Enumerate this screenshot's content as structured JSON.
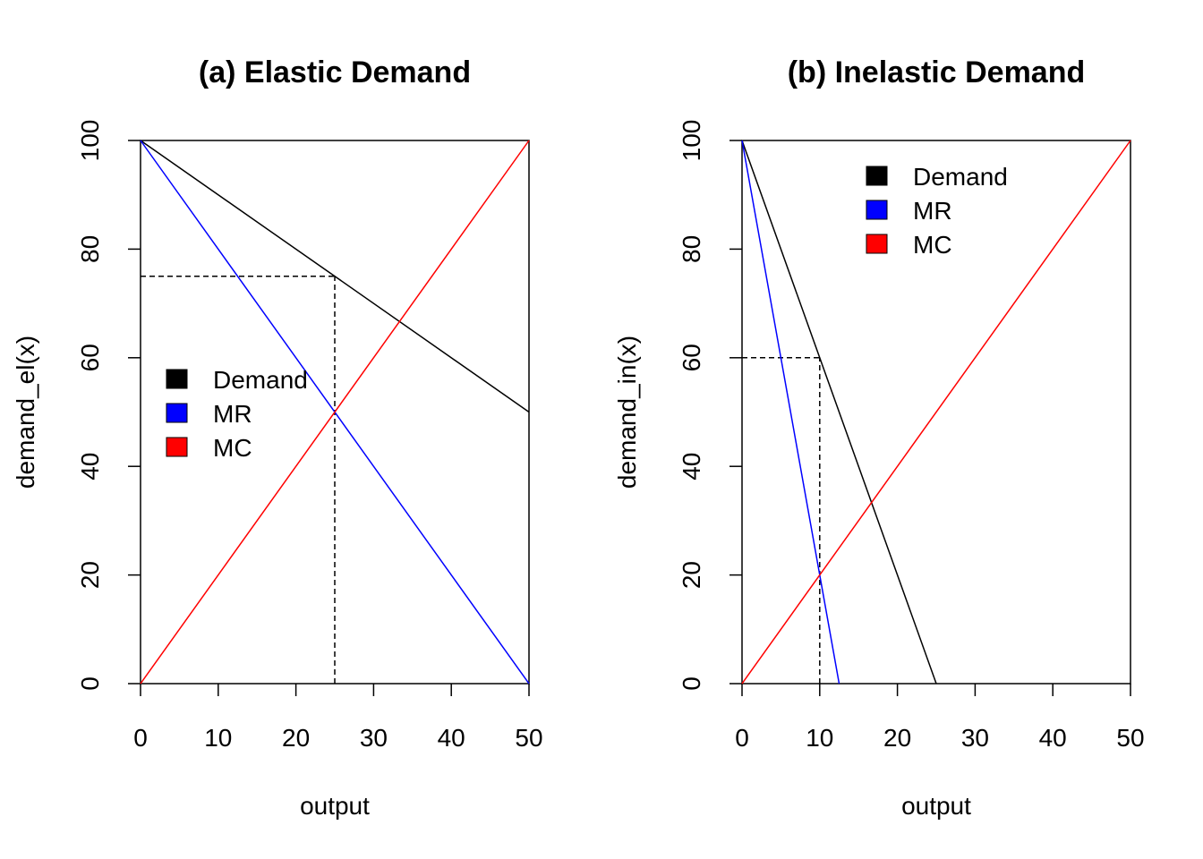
{
  "chart_data": [
    {
      "type": "line",
      "title": "(a) Elastic Demand",
      "xlabel": "output",
      "ylabel": "demand_el(x)",
      "xlim": [
        0,
        50
      ],
      "ylim": [
        0,
        100
      ],
      "xticks": [
        0,
        10,
        20,
        30,
        40,
        50
      ],
      "yticks": [
        0,
        20,
        40,
        60,
        80,
        100
      ],
      "grid": false,
      "legend_position": "left-middle",
      "legend": [
        {
          "label": "Demand",
          "color": "#000000"
        },
        {
          "label": "MR",
          "color": "#0000ff"
        },
        {
          "label": "MC",
          "color": "#ff0000"
        }
      ],
      "series": [
        {
          "name": "Demand",
          "color": "#000000",
          "x": [
            0,
            50
          ],
          "y": [
            100,
            50
          ]
        },
        {
          "name": "MR",
          "color": "#0000ff",
          "x": [
            0,
            50
          ],
          "y": [
            100,
            0
          ]
        },
        {
          "name": "MC",
          "color": "#ff0000",
          "x": [
            0,
            50
          ],
          "y": [
            0,
            100
          ]
        }
      ],
      "reference_lines": [
        {
          "x": [
            0,
            25
          ],
          "y": [
            75,
            75
          ]
        },
        {
          "x": [
            25,
            25
          ],
          "y": [
            0,
            75
          ]
        }
      ]
    },
    {
      "type": "line",
      "title": "(b) Inelastic Demand",
      "xlabel": "output",
      "ylabel": "demand_in(x)",
      "xlim": [
        0,
        50
      ],
      "ylim": [
        0,
        100
      ],
      "xticks": [
        0,
        10,
        20,
        30,
        40,
        50
      ],
      "yticks": [
        0,
        20,
        40,
        60,
        80,
        100
      ],
      "grid": false,
      "legend_position": "top-center",
      "legend": [
        {
          "label": "Demand",
          "color": "#000000"
        },
        {
          "label": "MR",
          "color": "#0000ff"
        },
        {
          "label": "MC",
          "color": "#ff0000"
        }
      ],
      "series": [
        {
          "name": "Demand",
          "color": "#000000",
          "x": [
            0,
            25
          ],
          "y": [
            100,
            0
          ]
        },
        {
          "name": "MR",
          "color": "#0000ff",
          "x": [
            0,
            12.5
          ],
          "y": [
            100,
            0
          ]
        },
        {
          "name": "MC",
          "color": "#ff0000",
          "x": [
            0,
            50
          ],
          "y": [
            0,
            100
          ]
        }
      ],
      "reference_lines": [
        {
          "x": [
            0,
            10
          ],
          "y": [
            60,
            60
          ]
        },
        {
          "x": [
            10,
            10
          ],
          "y": [
            0,
            60
          ]
        }
      ]
    }
  ]
}
